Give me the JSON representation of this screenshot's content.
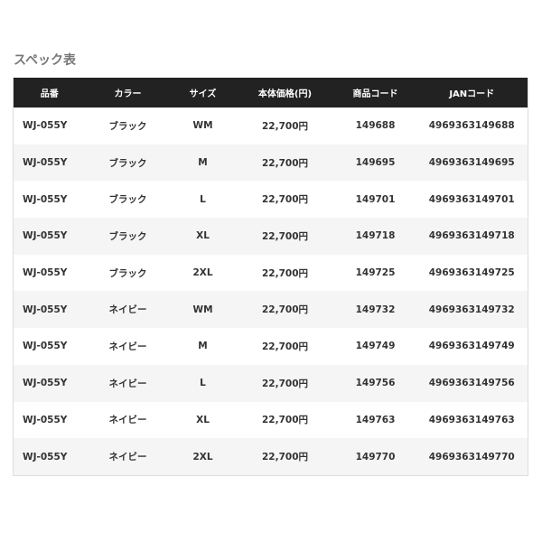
{
  "title": "スペック表",
  "headers": [
    "品番",
    "カラー",
    "サイズ",
    "本体価格(円)",
    "商品コード",
    "JANコード"
  ],
  "rows": [
    [
      "WJ-055Y",
      "ブラック",
      "WM",
      "22,700円",
      "149688",
      "4969363149688"
    ],
    [
      "WJ-055Y",
      "ブラック",
      "M",
      "22,700円",
      "149695",
      "4969363149695"
    ],
    [
      "WJ-055Y",
      "ブラック",
      "L",
      "22,700円",
      "149701",
      "4969363149701"
    ],
    [
      "WJ-055Y",
      "ブラック",
      "XL",
      "22,700円",
      "149718",
      "4969363149718"
    ],
    [
      "WJ-055Y",
      "ブラック",
      "2XL",
      "22,700円",
      "149725",
      "4969363149725"
    ],
    [
      "WJ-055Y",
      "ネイビー",
      "WM",
      "22,700円",
      "149732",
      "4969363149732"
    ],
    [
      "WJ-055Y",
      "ネイビー",
      "M",
      "22,700円",
      "149749",
      "4969363149749"
    ],
    [
      "WJ-055Y",
      "ネイビー",
      "L",
      "22,700円",
      "149756",
      "4969363149756"
    ],
    [
      "WJ-055Y",
      "ネイビー",
      "XL",
      "22,700円",
      "149763",
      "4969363149763"
    ],
    [
      "WJ-055Y",
      "ネイビー",
      "2XL",
      "22,700円",
      "149770",
      "4969363149770"
    ]
  ]
}
